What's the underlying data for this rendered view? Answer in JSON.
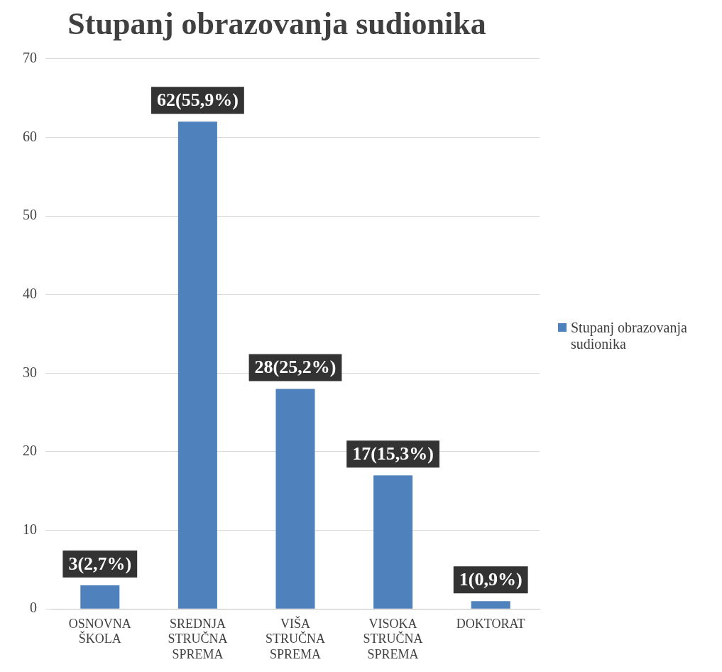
{
  "chart_data": {
    "type": "bar",
    "title": "Stupanj obrazovanja sudionika",
    "categories": [
      "OSNOVNA ŠKOLA",
      "SREDNJA STRUČNA SPREMA",
      "VIŠA STRUČNA SPREMA",
      "VISOKA STRUČNA SPREMA",
      "DOKTORAT"
    ],
    "series": [
      {
        "name": "Stupanj obrazovanja sudionika",
        "color": "#4f81bd",
        "values": [
          3,
          62,
          28,
          17,
          1
        ],
        "value_labels": [
          "3(2,7%)",
          "62(55,9%)",
          "28(25,2%)",
          "17(15,3%)",
          "1(0,9%)"
        ]
      }
    ],
    "ylim": [
      0,
      70
    ],
    "yticks": [
      0,
      10,
      20,
      30,
      40,
      50,
      60,
      70
    ],
    "grid": "y",
    "legend": "right"
  }
}
